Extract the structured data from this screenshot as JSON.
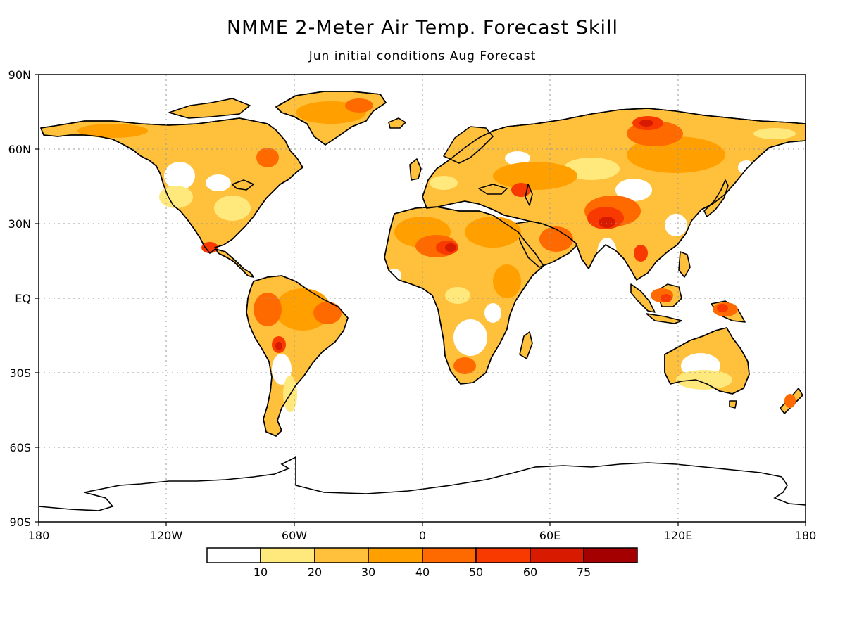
{
  "title": "NMME 2-Meter Air Temp. Forecast Skill",
  "subtitle": "Jun initial conditions  Aug Forecast",
  "map": {
    "lat_labels": [
      "90N",
      "60N",
      "30N",
      "EQ",
      "30S",
      "60S",
      "90S"
    ],
    "lon_labels": [
      "180",
      "120W",
      "60W",
      "0",
      "60E",
      "120E",
      "180"
    ],
    "grid": "dotted",
    "projection": "equirectangular"
  },
  "colorbar": {
    "tick_labels": [
      "10",
      "20",
      "30",
      "40",
      "50",
      "60",
      "75"
    ],
    "colors": [
      "#ffffff",
      "#ffe87c",
      "#ffc03c",
      "#ff9f00",
      "#ff6a00",
      "#f93a00",
      "#d71a00",
      "#a50000"
    ]
  }
}
